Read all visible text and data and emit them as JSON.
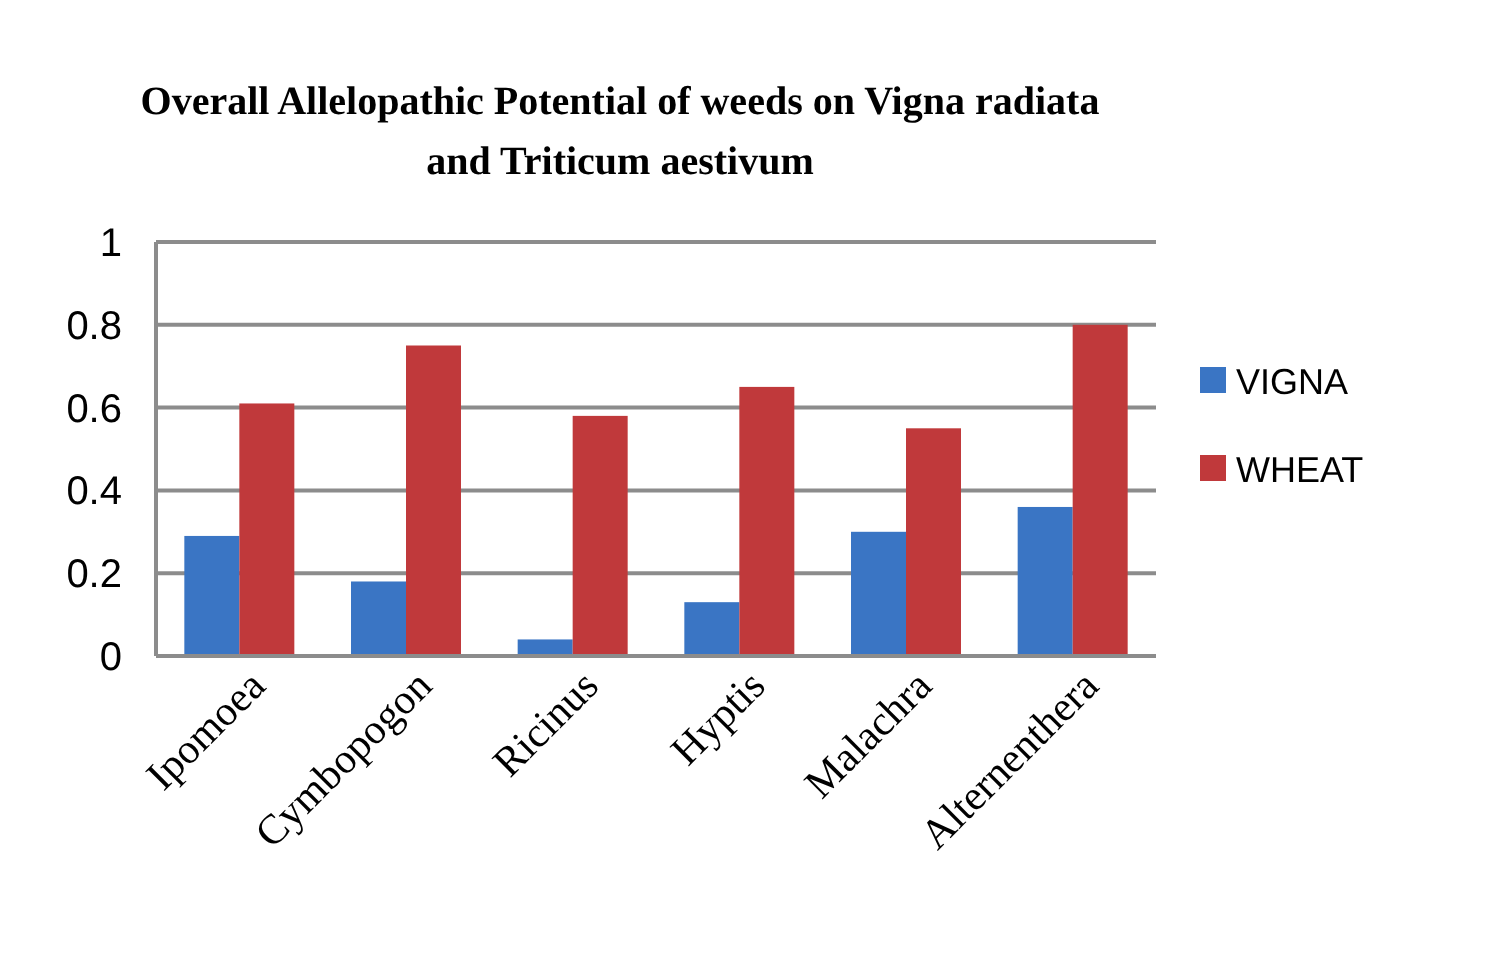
{
  "chart_data": {
    "type": "bar",
    "title": "Overall Allelopathic Potential of weeds on Vigna radiata and Triticum aestivum",
    "categories": [
      "Ipomoea",
      "Cymbopogon",
      "Ricinus",
      "Hyptis",
      "Malachra",
      "Alternenthera"
    ],
    "series": [
      {
        "name": "VIGNA",
        "color": "#3a75c4",
        "values": [
          0.29,
          0.18,
          0.04,
          0.13,
          0.3,
          0.36
        ]
      },
      {
        "name": "WHEAT",
        "color": "#c0393b",
        "values": [
          0.61,
          0.75,
          0.58,
          0.65,
          0.55,
          0.8
        ]
      }
    ],
    "ylim": [
      0,
      1
    ],
    "yticks": [
      0,
      0.2,
      0.4,
      0.6,
      0.8,
      1
    ],
    "grid": "y",
    "legend": "right"
  }
}
